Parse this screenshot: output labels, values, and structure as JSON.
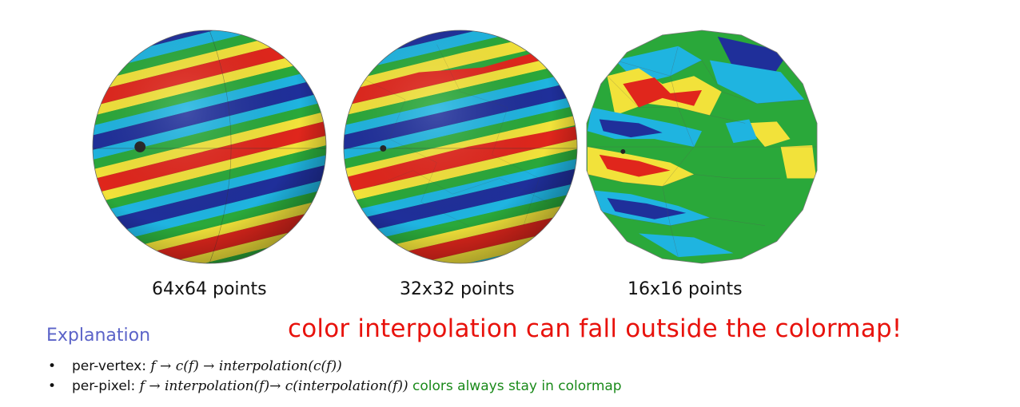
{
  "figure": {
    "captions": [
      "64x64 points",
      "32x32 points",
      "16x16 points"
    ],
    "colormap": [
      "#1f2f9a",
      "#1fb4e0",
      "#2aa83a",
      "#f2e23a",
      "#e0261c"
    ]
  },
  "explanation": {
    "title": "Explanation",
    "warning": "color interpolation can fall outside the colormap!",
    "bullets": [
      {
        "label": "per-vertex:",
        "formula": "f → c(f) → interpolation(c(f))",
        "note": ""
      },
      {
        "label": "per-pixel:",
        "formula": "f → interpolation(f)→ c(interpolation(f))",
        "note": "colors always stay in colormap"
      }
    ]
  }
}
